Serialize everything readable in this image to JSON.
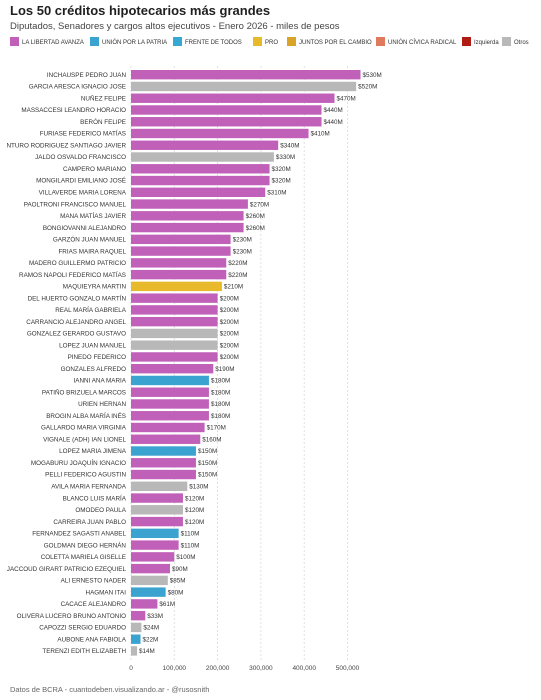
{
  "chart_data": {
    "type": "bar",
    "orientation": "horizontal",
    "title": "Los 50 créditos hipotecarios más grandes",
    "subtitle": "Diputados, Senadores y cargos altos ejecutivos - Enero 2026 - miles de pesos",
    "legend": [
      {
        "name": "LA LIBERTAD AVANZA",
        "color": "#c160b9"
      },
      {
        "name": "UNIÓN POR LA PATRIA",
        "color": "#3ba3cf"
      },
      {
        "name": "FRENTE DE TODOS",
        "color": "#35a9d4"
      },
      {
        "name": "PRO",
        "color": "#e8b92b"
      },
      {
        "name": "JUNTOS POR EL CAMBIO",
        "color": "#d9a428"
      },
      {
        "name": "UNIÓN CÍVICA RADICAL",
        "color": "#df7a5e"
      },
      {
        "name": "Izquierda",
        "color": "#b01c14"
      },
      {
        "name": "Otros",
        "color": "#b8b8b8"
      }
    ],
    "xlim": [
      0,
      530000
    ],
    "xticks": [
      "0",
      "100,000",
      "200,000",
      "300,000",
      "400,000",
      "500,000"
    ],
    "xtick_values": [
      0,
      100000,
      200000,
      300000,
      400000,
      500000
    ],
    "grid": "vertical",
    "rows": [
      {
        "name": "INCHAUSPE PEDRO JUAN",
        "value": 530000,
        "label": "$530M",
        "party": "LA LIBERTAD AVANZA"
      },
      {
        "name": "GARCIA ARESCA IGNACIO JOSE",
        "value": 520000,
        "label": "$520M",
        "party": "Otros"
      },
      {
        "name": "NUÑEZ FELIPE",
        "value": 470000,
        "label": "$470M",
        "party": "LA LIBERTAD AVANZA"
      },
      {
        "name": "MASSACCESI LEANDRO HORACIO",
        "value": 440000,
        "label": "$440M",
        "party": "LA LIBERTAD AVANZA"
      },
      {
        "name": "BERÓN FELIPE",
        "value": 440000,
        "label": "$440M",
        "party": "LA LIBERTAD AVANZA"
      },
      {
        "name": "FURIASE FEDERICO MATÍAS",
        "value": 410000,
        "label": "$410M",
        "party": "LA LIBERTAD AVANZA"
      },
      {
        "name": "NTURO RODRIGUEZ SANTIAGO JAVIER",
        "value": 340000,
        "label": "$340M",
        "party": "LA LIBERTAD AVANZA"
      },
      {
        "name": "JALDO OSVALDO FRANCISCO",
        "value": 330000,
        "label": "$330M",
        "party": "Otros"
      },
      {
        "name": "CAMPERO MARIANO",
        "value": 320000,
        "label": "$320M",
        "party": "LA LIBERTAD AVANZA"
      },
      {
        "name": "MONGILARDI EMILIANO JOSÉ",
        "value": 320000,
        "label": "$320M",
        "party": "LA LIBERTAD AVANZA"
      },
      {
        "name": "VILLAVERDE MARIA LORENA",
        "value": 310000,
        "label": "$310M",
        "party": "LA LIBERTAD AVANZA"
      },
      {
        "name": "PAOLTRONI FRANCISCO MANUEL",
        "value": 270000,
        "label": "$270M",
        "party": "LA LIBERTAD AVANZA"
      },
      {
        "name": "MANA MATÍAS JAVIER",
        "value": 260000,
        "label": "$260M",
        "party": "LA LIBERTAD AVANZA"
      },
      {
        "name": "BONGIOVANNI ALEJANDRO",
        "value": 260000,
        "label": "$260M",
        "party": "LA LIBERTAD AVANZA"
      },
      {
        "name": "GARZÓN JUAN MANUEL",
        "value": 230000,
        "label": "$230M",
        "party": "LA LIBERTAD AVANZA"
      },
      {
        "name": "FRIAS MAIRA RAQUEL",
        "value": 230000,
        "label": "$230M",
        "party": "LA LIBERTAD AVANZA"
      },
      {
        "name": "MADERO GUILLERMO PATRICIO",
        "value": 220000,
        "label": "$220M",
        "party": "LA LIBERTAD AVANZA"
      },
      {
        "name": "RAMOS NAPOLI FEDERICO MATÍAS",
        "value": 220000,
        "label": "$220M",
        "party": "LA LIBERTAD AVANZA"
      },
      {
        "name": "MAQUIEYRA MARTIN",
        "value": 210000,
        "label": "$210M",
        "party": "PRO"
      },
      {
        "name": "DEL HUERTO GONZALO MARTÍN",
        "value": 200000,
        "label": "$200M",
        "party": "LA LIBERTAD AVANZA"
      },
      {
        "name": "REAL MARÍA GABRIELA",
        "value": 200000,
        "label": "$200M",
        "party": "LA LIBERTAD AVANZA"
      },
      {
        "name": "CARRANCIO ALEJANDRO ANGEL",
        "value": 200000,
        "label": "$200M",
        "party": "LA LIBERTAD AVANZA"
      },
      {
        "name": "GONZALEZ GERARDO GUSTAVO",
        "value": 200000,
        "label": "$200M",
        "party": "Otros"
      },
      {
        "name": "LOPEZ JUAN MANUEL",
        "value": 200000,
        "label": "$200M",
        "party": "Otros"
      },
      {
        "name": "PINEDO FEDERICO",
        "value": 200000,
        "label": "$200M",
        "party": "LA LIBERTAD AVANZA"
      },
      {
        "name": "GONZALES ALFREDO",
        "value": 190000,
        "label": "$190M",
        "party": "LA LIBERTAD AVANZA"
      },
      {
        "name": "IANNI ANA MARIA",
        "value": 180000,
        "label": "$180M",
        "party": "UNIÓN POR LA PATRIA"
      },
      {
        "name": "PATIÑO BRIZUELA MARCOS",
        "value": 180000,
        "label": "$180M",
        "party": "LA LIBERTAD AVANZA"
      },
      {
        "name": "URIEN HERNAN",
        "value": 180000,
        "label": "$180M",
        "party": "LA LIBERTAD AVANZA"
      },
      {
        "name": "BROGIN ALBA MARÍA INÉS",
        "value": 180000,
        "label": "$180M",
        "party": "LA LIBERTAD AVANZA"
      },
      {
        "name": "GALLARDO MARIA VIRGINIA",
        "value": 170000,
        "label": "$170M",
        "party": "LA LIBERTAD AVANZA"
      },
      {
        "name": "VIGNALE (ADH) IAN LIONEL",
        "value": 160000,
        "label": "$160M",
        "party": "LA LIBERTAD AVANZA"
      },
      {
        "name": "LOPEZ MARIA JIMENA",
        "value": 150000,
        "label": "$150M",
        "party": "UNIÓN POR LA PATRIA"
      },
      {
        "name": "MOGABURU JOAQUÍN IGNACIO",
        "value": 150000,
        "label": "$150M",
        "party": "LA LIBERTAD AVANZA"
      },
      {
        "name": "PELLI FEDERICO AGUSTIN",
        "value": 150000,
        "label": "$150M",
        "party": "LA LIBERTAD AVANZA"
      },
      {
        "name": "AVILA MARIA FERNANDA",
        "value": 130000,
        "label": "$130M",
        "party": "Otros"
      },
      {
        "name": "BLANCO LUIS MARÍA",
        "value": 120000,
        "label": "$120M",
        "party": "LA LIBERTAD AVANZA"
      },
      {
        "name": "OMODEO PAULA",
        "value": 120000,
        "label": "$120M",
        "party": "Otros"
      },
      {
        "name": "CARREIRA JUAN PABLO",
        "value": 120000,
        "label": "$120M",
        "party": "LA LIBERTAD AVANZA"
      },
      {
        "name": "FERNANDEZ SAGASTI ANABEL",
        "value": 110000,
        "label": "$110M",
        "party": "UNIÓN POR LA PATRIA"
      },
      {
        "name": "GOLDMAN DIEGO HERNÁN",
        "value": 110000,
        "label": "$110M",
        "party": "LA LIBERTAD AVANZA"
      },
      {
        "name": "COLETTA MARIELA GISELLE",
        "value": 100000,
        "label": "$100M",
        "party": "LA LIBERTAD AVANZA"
      },
      {
        "name": "JACCOUD GIRART PATRICIO EZEQUIEL",
        "value": 90000,
        "label": "$90M",
        "party": "LA LIBERTAD AVANZA"
      },
      {
        "name": "ALI ERNESTO NADER",
        "value": 85000,
        "label": "$85M",
        "party": "Otros"
      },
      {
        "name": "HAGMAN ITAI",
        "value": 80000,
        "label": "$80M",
        "party": "UNIÓN POR LA PATRIA"
      },
      {
        "name": "CACACE ALEJANDRO",
        "value": 61000,
        "label": "$61M",
        "party": "LA LIBERTAD AVANZA"
      },
      {
        "name": "OLIVERA LUCERO BRUNO ANTONIO",
        "value": 33000,
        "label": "$33M",
        "party": "LA LIBERTAD AVANZA"
      },
      {
        "name": "CAPOZZI SERGIO EDUARDO",
        "value": 24000,
        "label": "$24M",
        "party": "Otros"
      },
      {
        "name": "AUBONE ANA FABIOLA",
        "value": 22000,
        "label": "$22M",
        "party": "UNIÓN POR LA PATRIA"
      },
      {
        "name": "TERENZI EDITH ELIZABETH",
        "value": 14000,
        "label": "$14M",
        "party": "Otros"
      }
    ]
  },
  "footer": "Datos de BCRA - cuantodeben.visualizando.ar - @rusosnith"
}
